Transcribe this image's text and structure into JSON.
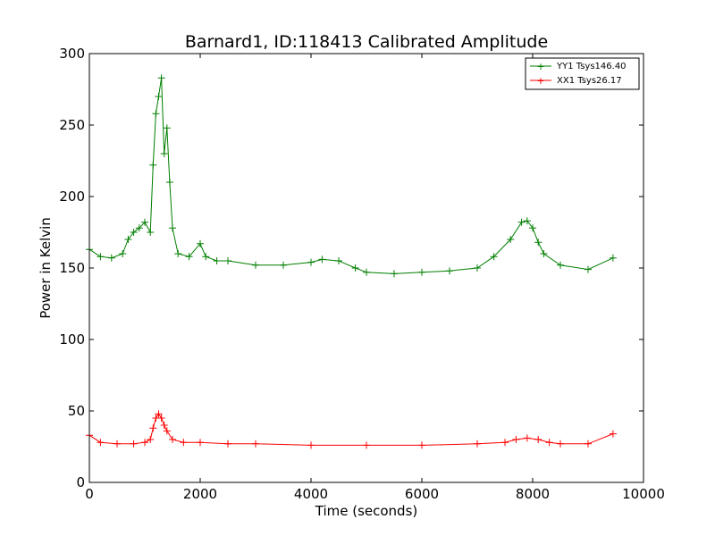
{
  "chart_data": {
    "type": "scatter",
    "title": "Barnard1, ID:118413 Calibrated Amplitude",
    "xlabel": "Time (seconds)",
    "ylabel": "Power in Kelvin",
    "xlim": [
      0,
      10000
    ],
    "ylim": [
      0,
      300
    ],
    "xticks": [
      0,
      2000,
      4000,
      6000,
      8000,
      10000
    ],
    "yticks": [
      0,
      50,
      100,
      150,
      200,
      250,
      300
    ],
    "xtick_labels": [
      "0",
      "2000",
      "4000",
      "6000",
      "8000",
      "10000"
    ],
    "ytick_labels": [
      "0",
      "50",
      "100",
      "150",
      "200",
      "250",
      "300"
    ],
    "grid": false,
    "legend_position": "top-right",
    "marker": "+",
    "series": [
      {
        "name": "YY1 Tsys146.40",
        "color": "#007f00",
        "x": [
          0,
          200,
          400,
          600,
          700,
          800,
          900,
          1000,
          1100,
          1150,
          1200,
          1250,
          1300,
          1350,
          1400,
          1450,
          1500,
          1600,
          1800,
          2000,
          2100,
          2300,
          2500,
          3000,
          3500,
          4000,
          4200,
          4500,
          4800,
          5000,
          5500,
          6000,
          6500,
          7000,
          7300,
          7600,
          7800,
          7900,
          8000,
          8100,
          8200,
          8500,
          9000,
          9450
        ],
        "y": [
          163,
          158,
          157,
          160,
          170,
          175,
          178,
          182,
          175,
          222,
          258,
          270,
          283,
          230,
          248,
          210,
          178,
          160,
          158,
          167,
          158,
          155,
          155,
          152,
          152,
          154,
          156,
          155,
          150,
          147,
          146,
          147,
          148,
          150,
          158,
          170,
          182,
          183,
          178,
          168,
          160,
          152,
          149,
          157
        ]
      },
      {
        "name": "XX1 Tsys26.17",
        "color": "#ff0000",
        "x": [
          0,
          200,
          500,
          800,
          1000,
          1100,
          1150,
          1200,
          1250,
          1300,
          1350,
          1400,
          1500,
          1700,
          2000,
          2500,
          3000,
          4000,
          5000,
          6000,
          7000,
          7500,
          7700,
          7900,
          8100,
          8300,
          8500,
          9000,
          9450
        ],
        "y": [
          33,
          28,
          27,
          27,
          28,
          30,
          38,
          45,
          48,
          45,
          40,
          36,
          30,
          28,
          28,
          27,
          27,
          26,
          26,
          26,
          27,
          28,
          30,
          31,
          30,
          28,
          27,
          27,
          34
        ]
      }
    ]
  }
}
